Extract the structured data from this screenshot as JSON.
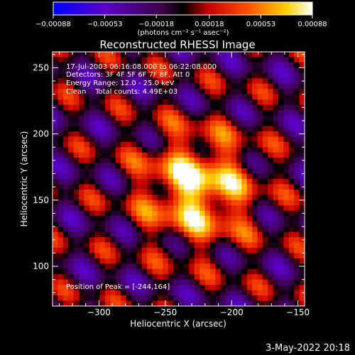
{
  "chart_data": {
    "type": "heatmap",
    "title": "Reconstructed RHESSI Image",
    "xlabel": "Heliocentric X (arcsec)",
    "ylabel": "Heliocentric Y (arcsec)",
    "xlim": [
      -335,
      -145
    ],
    "ylim": [
      70,
      262
    ],
    "x_ticks": [
      -300,
      -250,
      -200,
      -150
    ],
    "y_ticks": [
      100,
      150,
      200,
      250
    ],
    "colorbar": {
      "range": [
        -0.00088,
        0.00088
      ],
      "ticks": [
        -0.00088,
        -0.00053,
        -0.00018,
        0.00018,
        0.00053,
        0.00088
      ],
      "tick_labels": [
        "-0.00088",
        "-0.00053",
        "-0.00018",
        "0.00018",
        "0.00053",
        "0.00088"
      ],
      "unit_label": "(photons cm⁻² s⁻¹ asec⁻²)",
      "colors": [
        "#0000ff",
        "#5a00c8",
        "#3c0046",
        "#000000",
        "#c80000",
        "#ff5000",
        "#ffd000",
        "#ffffff"
      ]
    },
    "annotations": [
      "17-Jul-2003 06:16:08.000 to 06:22:08.000",
      "Detectors: 3F 4F 5F 6F 7F 8F, Att 0",
      "Energy Range: 12.0 - 25.0 keV",
      "Clean    Total counts: 4.49E+03"
    ],
    "peak_label": "Position of Peak = [-244,164]",
    "peak": {
      "x": -244,
      "y": 164
    },
    "grid": false
  },
  "footer": {
    "date": "3-May-2022 20:18"
  }
}
